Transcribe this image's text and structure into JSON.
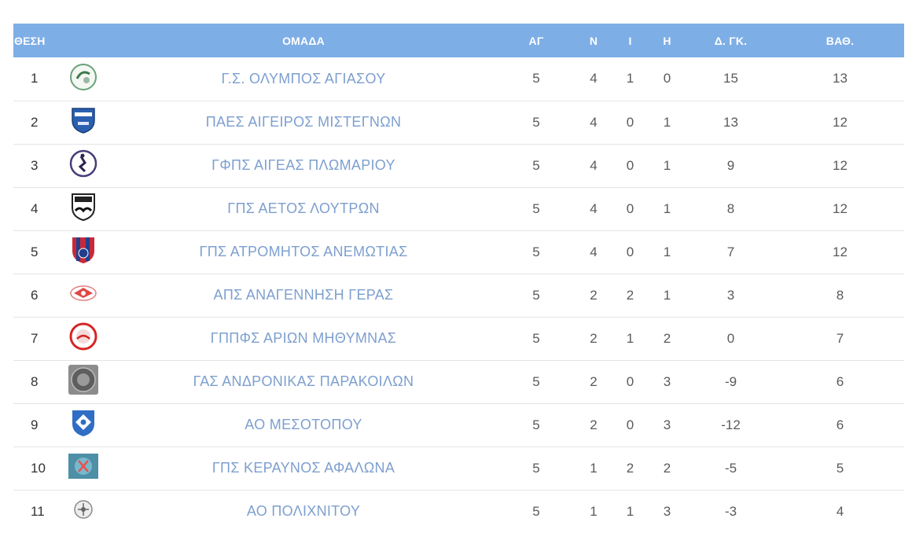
{
  "headers": {
    "pos": "ΘΕΣΗ",
    "team": "ΟΜΑΔΑ",
    "played": "ΑΓ",
    "wins": "Ν",
    "draws": "Ι",
    "losses": "Η",
    "goal_diff": "Δ. ΓΚ.",
    "points": "ΒΑΘ."
  },
  "colors": {
    "header_bg": "#7eaee6",
    "team_text": "#7d9fcf"
  },
  "rows": [
    {
      "pos": "1",
      "logo": "ball-logo-green",
      "team": "Γ.Σ. ΟΛΥΜΠΟΣ ΑΓΙΑΣΟΥ",
      "played": "5",
      "wins": "4",
      "draws": "1",
      "losses": "0",
      "goal_diff": "15",
      "points": "13"
    },
    {
      "pos": "2",
      "logo": "shield-logo-blue",
      "team": "ΠΑΕΣ ΑΙΓΕΙΡΟΣ ΜΙΣΤΕΓΝΩΝ",
      "played": "5",
      "wins": "4",
      "draws": "0",
      "losses": "1",
      "goal_diff": "13",
      "points": "12"
    },
    {
      "pos": "3",
      "logo": "circle-logo-purple",
      "team": "ΓΦΠΣ ΑΙΓΕΑΣ ΠΛΩΜΑΡΙΟΥ",
      "played": "5",
      "wins": "4",
      "draws": "0",
      "losses": "1",
      "goal_diff": "9",
      "points": "12"
    },
    {
      "pos": "4",
      "logo": "shield-logo-eagle",
      "team": "ΓΠΣ ΑΕΤΟΣ ΛΟΥΤΡΩΝ",
      "played": "5",
      "wins": "4",
      "draws": "0",
      "losses": "1",
      "goal_diff": "8",
      "points": "12"
    },
    {
      "pos": "5",
      "logo": "shield-logo-red-blue",
      "team": "ΓΠΣ ΑΤΡΟΜΗΤΟΣ ΑΝΕΜΩΤΙΑΣ",
      "played": "5",
      "wins": "4",
      "draws": "0",
      "losses": "1",
      "goal_diff": "7",
      "points": "12"
    },
    {
      "pos": "6",
      "logo": "ball-logo-red",
      "team": "ΑΠΣ ΑΝΑΓΕΝΝΗΣΗ ΓΕΡΑΣ",
      "played": "5",
      "wins": "2",
      "draws": "2",
      "losses": "1",
      "goal_diff": "3",
      "points": "8"
    },
    {
      "pos": "7",
      "logo": "circle-logo-red",
      "team": "ΓΠΠΦΣ ΑΡΙΩΝ ΜΗΘΥΜΝΑΣ",
      "played": "5",
      "wins": "2",
      "draws": "1",
      "losses": "2",
      "goal_diff": "0",
      "points": "7"
    },
    {
      "pos": "8",
      "logo": "seal-logo-gray",
      "team": "ΓΑΣ ΑΝΔΡΟΝΙΚΑΣ ΠΑΡΑΚΟΙΛΩΝ",
      "played": "5",
      "wins": "2",
      "draws": "0",
      "losses": "3",
      "goal_diff": "-9",
      "points": "6"
    },
    {
      "pos": "9",
      "logo": "shield-logo-blue-white",
      "team": "ΑΟ ΜΕΣΟΤΟΠΟΥ",
      "played": "5",
      "wins": "2",
      "draws": "0",
      "losses": "3",
      "goal_diff": "-12",
      "points": "6"
    },
    {
      "pos": "10",
      "logo": "square-logo-teal",
      "team": "ΓΠΣ ΚΕΡΑΥΝΟΣ ΑΦΑΛΩΝΑ",
      "played": "5",
      "wins": "1",
      "draws": "2",
      "losses": "2",
      "goal_diff": "-5",
      "points": "5"
    },
    {
      "pos": "11",
      "logo": "ball-logo-gray",
      "team": "ΑΟ ΠΟΛΙΧΝΙΤΟΥ",
      "played": "5",
      "wins": "1",
      "draws": "1",
      "losses": "3",
      "goal_diff": "-3",
      "points": "4"
    }
  ]
}
